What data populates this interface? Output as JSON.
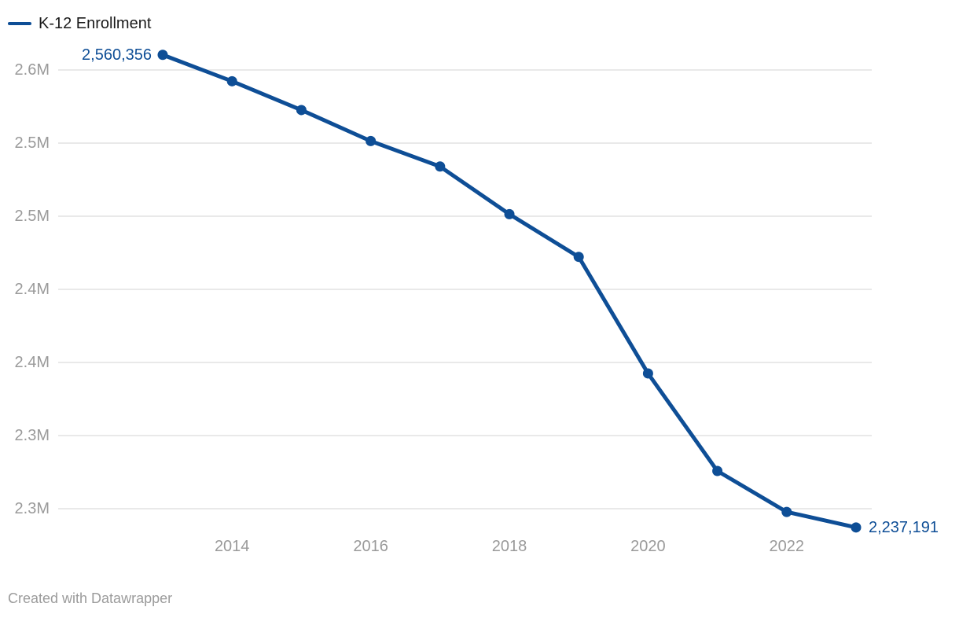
{
  "legend": {
    "label": "K-12 Enrollment"
  },
  "footer": {
    "credit": "Created with Datawrapper"
  },
  "colors": {
    "line": "#0e4e96",
    "marker": "#0e4e96",
    "value_label": "#0e4e96",
    "grid": "#e9e9e9",
    "axis_text": "#9a9a9a",
    "legend_text": "#1a1a1a",
    "background": "#ffffff"
  },
  "chart_data": {
    "type": "line",
    "title": "K-12 Enrollment",
    "legend_position": "top-left",
    "grid": "horizontal-only",
    "x": [
      2013,
      2014,
      2015,
      2016,
      2017,
      2018,
      2019,
      2020,
      2021,
      2022,
      2023
    ],
    "series": [
      {
        "name": "K-12 Enrollment",
        "values": [
          2560356,
          2542300,
          2522600,
          2501400,
          2484000,
          2451400,
          2422200,
          2342500,
          2275800,
          2247800,
          2237191
        ]
      }
    ],
    "point_labels": {
      "first": "2,560,356",
      "last": "2,237,191"
    },
    "x_ticks": [
      "2014",
      "2016",
      "2018",
      "2020",
      "2022"
    ],
    "x_tick_years": [
      2014,
      2016,
      2018,
      2020,
      2022
    ],
    "y_ticks": [
      {
        "value": 2550000,
        "label": "2.6M"
      },
      {
        "value": 2500000,
        "label": "2.5M"
      },
      {
        "value": 2450000,
        "label": "2.5M"
      },
      {
        "value": 2400000,
        "label": "2.4M"
      },
      {
        "value": 2350000,
        "label": "2.4M"
      },
      {
        "value": 2300000,
        "label": "2.3M"
      },
      {
        "value": 2250000,
        "label": "2.3M"
      }
    ],
    "xlim": [
      2013,
      2023
    ],
    "ylim": [
      2225000,
      2575000
    ],
    "xlabel": "",
    "ylabel": ""
  }
}
